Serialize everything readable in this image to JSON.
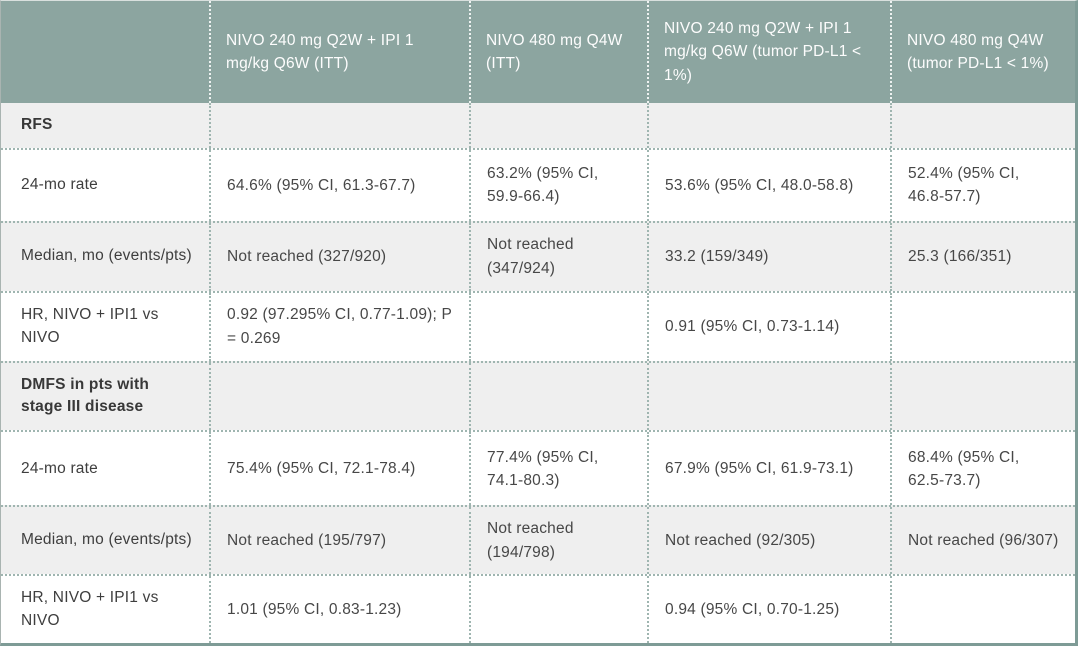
{
  "colors": {
    "header-bg": "#8CA5A0",
    "shade-bg": "#EFEFEF",
    "frame-color": "#7E9B96",
    "dot-color": "#9FB5B0"
  },
  "table": {
    "columns": [
      "NIVO 240 mg Q2W + IPI 1 mg/kg Q6W (ITT)",
      "NIVO 480 mg Q4W (ITT)",
      "NIVO 240 mg Q2W + IPI 1 mg/kg Q6W (tumor PD-L1 < 1%)",
      "NIVO 480 mg Q4W (tumor PD-L1 < 1%)"
    ],
    "rows": [
      {
        "label": "RFS",
        "cells": [
          "",
          "",
          "",
          ""
        ]
      },
      {
        "label": "24-mo rate",
        "cells": [
          "64.6% (95% CI, 61.3-67.7)",
          "63.2% (95% CI, 59.9-66.4)",
          "53.6% (95% CI, 48.0-58.8)",
          "52.4% (95% CI, 46.8-57.7)"
        ]
      },
      {
        "label": "Median, mo (events/pts)",
        "cells": [
          "Not reached (327/920)",
          "Not reached (347/924)",
          "33.2 (159/349)",
          "25.3 (166/351)"
        ]
      },
      {
        "label": "HR, NIVO + IPI1 vs NIVO",
        "cells": [
          "0.92 (97.295% CI, 0.77-1.09); P = 0.269",
          "",
          "0.91 (95% CI, 0.73-1.14)",
          ""
        ]
      },
      {
        "label": "DMFS in pts with stage III disease",
        "cells": [
          "",
          "",
          "",
          ""
        ]
      },
      {
        "label": "24-mo rate",
        "cells": [
          "75.4% (95% CI, 72.1-78.4)",
          "77.4% (95% CI, 74.1-80.3)",
          "67.9% (95% CI, 61.9-73.1)",
          "68.4% (95% CI, 62.5-73.7)"
        ]
      },
      {
        "label": "Median, mo (events/pts)",
        "cells": [
          "Not reached (195/797)",
          "Not reached (194/798)",
          "Not reached (92/305)",
          "Not reached (96/307)"
        ]
      },
      {
        "label": "HR, NIVO + IPI1 vs NIVO",
        "cells": [
          "1.01 (95% CI, 0.83-1.23)",
          "",
          "0.94 (95% CI, 0.70-1.25)",
          ""
        ]
      }
    ]
  }
}
